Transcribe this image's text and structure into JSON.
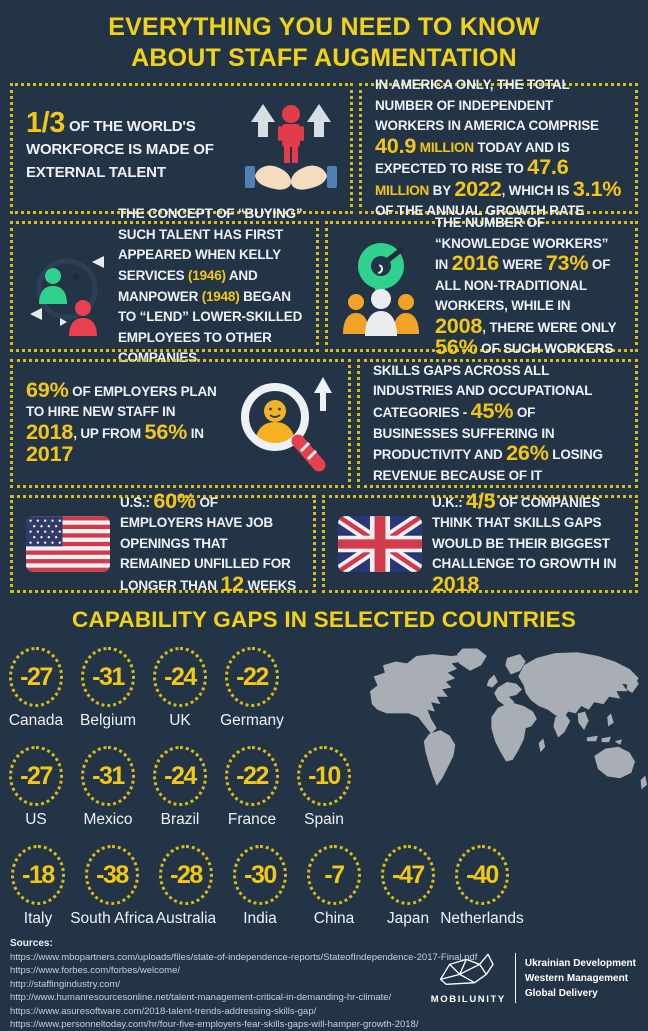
{
  "title": {
    "line1": "EVERYTHING YOU NEED TO KNOW",
    "line2": "ABOUT STAFF AUGMENTATION"
  },
  "facts": {
    "external_talent": {
      "segments": [
        {
          "t": "1/3",
          "s": "Y"
        },
        {
          "t": " OF THE WORLD'S WORKFORCE IS MADE OF EXTERNAL TALENT",
          "s": "n"
        }
      ]
    },
    "independent_workers": {
      "segments": [
        {
          "t": "IN AMERICA ONLY, THE TOTAL NUMBER OF INDEPENDENT WORKERS IN AMERICA COMPRISE ",
          "s": "n"
        },
        {
          "t": "40.9",
          "s": "Y"
        },
        {
          "t": " MILLION",
          "s": "y"
        },
        {
          "t": " TODAY AND IS EXPECTED TO RISE TO ",
          "s": "n"
        },
        {
          "t": "47.6",
          "s": "Y"
        },
        {
          "t": " MILLION",
          "s": "y"
        },
        {
          "t": " BY ",
          "s": "n"
        },
        {
          "t": "2022",
          "s": "Y"
        },
        {
          "t": ", WHICH IS ",
          "s": "n"
        },
        {
          "t": "3.1%",
          "s": "Y"
        },
        {
          "t": " OF THE ANNUAL GROWTH RATE",
          "s": "n"
        }
      ]
    },
    "buying_talent": {
      "segments": [
        {
          "t": "THE CONCEPT OF “BUYING” SUCH TALENT HAS FIRST APPEARED WHEN KELLY SERVICES ",
          "s": "n"
        },
        {
          "t": "(1946)",
          "s": "y"
        },
        {
          "t": " AND MANPOWER ",
          "s": "n"
        },
        {
          "t": "(1948)",
          "s": "y"
        },
        {
          "t": " BEGAN TO “LEND” LOWER-SKILLED EMPLOYEES TO OTHER COMPANIES",
          "s": "n"
        }
      ]
    },
    "knowledge_workers": {
      "segments": [
        {
          "t": "THE NUMBER OF “KNOWLEDGE WORKERS” IN ",
          "s": "n"
        },
        {
          "t": "2016",
          "s": "Y"
        },
        {
          "t": " WERE ",
          "s": "n"
        },
        {
          "t": "73%",
          "s": "Y"
        },
        {
          "t": " OF ALL NON-TRADITIONAL WORKERS, WHILE IN ",
          "s": "n"
        },
        {
          "t": "2008",
          "s": "Y"
        },
        {
          "t": ", THERE WERE ONLY ",
          "s": "n"
        },
        {
          "t": "56%",
          "s": "Y"
        },
        {
          "t": " OF SUCH WORKERS",
          "s": "n"
        }
      ]
    },
    "hiring_plans": {
      "segments": [
        {
          "t": "69%",
          "s": "Y"
        },
        {
          "t": " OF EMPLOYERS PLAN TO HIRE NEW STAFF IN ",
          "s": "n"
        },
        {
          "t": "2018",
          "s": "Y"
        },
        {
          "t": ", UP FROM ",
          "s": "n"
        },
        {
          "t": "56%",
          "s": "Y"
        },
        {
          "t": " IN ",
          "s": "n"
        },
        {
          "t": "2017",
          "s": "Y"
        }
      ]
    },
    "skills_gaps": {
      "segments": [
        {
          "t": "SKILLS GAPS ACROSS ALL INDUSTRIES AND OCCUPATIONAL CATEGORIES - ",
          "s": "n"
        },
        {
          "t": "45%",
          "s": "Y"
        },
        {
          "t": " OF BUSINESSES SUFFERING IN PRODUCTIVITY AND ",
          "s": "n"
        },
        {
          "t": "26%",
          "s": "Y"
        },
        {
          "t": " LOSING REVENUE BECAUSE OF IT",
          "s": "n"
        }
      ]
    },
    "us_job_openings": {
      "segments": [
        {
          "t": "U.S.: ",
          "s": "n"
        },
        {
          "t": "60%",
          "s": "Y"
        },
        {
          "t": " OF EMPLOYERS HAVE JOB OPENINGS THAT REMAINED UNFILLED FOR LONGER THAN ",
          "s": "n"
        },
        {
          "t": "12",
          "s": "Y"
        },
        {
          "t": " WEEKS",
          "s": "n"
        }
      ]
    },
    "uk_skills_challenge": {
      "segments": [
        {
          "t": "U.K.: ",
          "s": "n"
        },
        {
          "t": "4/5",
          "s": "Y"
        },
        {
          "t": " OF COMPANIES THINK THAT SKILLS GAPS WOULD BE THEIR BIGGEST CHALLENGE TO GROWTH IN ",
          "s": "n"
        },
        {
          "t": "2018",
          "s": "Y"
        }
      ]
    }
  },
  "gaps": {
    "title": "CAPABILITY GAPS IN SELECTED COUNTRIES",
    "rows": [
      [
        {
          "value": "-27",
          "country": "Canada"
        },
        {
          "value": "-31",
          "country": "Belgium"
        },
        {
          "value": "-24",
          "country": "UK"
        },
        {
          "value": "-22",
          "country": "Germany"
        }
      ],
      [
        {
          "value": "-27",
          "country": "US"
        },
        {
          "value": "-31",
          "country": "Mexico"
        },
        {
          "value": "-24",
          "country": "Brazil"
        },
        {
          "value": "-22",
          "country": "France"
        },
        {
          "value": "-10",
          "country": "Spain"
        }
      ],
      [
        {
          "value": "-18",
          "country": "Italy"
        },
        {
          "value": "-38",
          "country": "South Africa"
        },
        {
          "value": "-28",
          "country": "Australia"
        },
        {
          "value": "-30",
          "country": "India"
        },
        {
          "value": "-7",
          "country": "China"
        },
        {
          "value": "-47",
          "country": "Japan"
        },
        {
          "value": "-40",
          "country": "Netherlands"
        }
      ]
    ]
  },
  "chart_data": {
    "type": "table",
    "title": "CAPABILITY GAPS IN SELECTED COUNTRIES",
    "categories": [
      "Canada",
      "Belgium",
      "UK",
      "Germany",
      "US",
      "Mexico",
      "Brazil",
      "France",
      "Spain",
      "Italy",
      "South Africa",
      "Australia",
      "India",
      "China",
      "Japan",
      "Netherlands"
    ],
    "values": [
      -27,
      -31,
      -24,
      -22,
      -27,
      -31,
      -24,
      -22,
      -10,
      -18,
      -38,
      -28,
      -30,
      -7,
      -47,
      -40
    ]
  },
  "sources": {
    "label": "Sources:",
    "urls": [
      "https://www.mbopartners.com/uploads/files/state-of-independence-reports/StateofIndependence-2017-Final.pdf",
      "https://www.forbes.com/forbes/welcome/",
      "http://staffingindustry.com/",
      "http://www.humanresourcesonline.net/talent-management-critical-in-demanding-hr-climate/",
      "https://www.asuresoftware.com/2018-talent-trends-addressing-skills-gap/",
      "https://www.personneltoday.com/hr/four-five-employers-fear-skills-gaps-will-hamper-growth-2018/"
    ]
  },
  "footer": {
    "brand": "MOBILUNITY",
    "taglines": [
      "Ukrainian Development",
      "Western Management",
      "Global Delivery"
    ]
  },
  "icons": {
    "fact_external_talent": "hands-holding-person-icon",
    "fact_buying_talent": "people-exchange-icon",
    "fact_knowledge_workers": "knowledge-workers-icon",
    "fact_hiring_plans": "magnifier-person-icon",
    "fact_us": "us-flag-icon",
    "fact_uk": "uk-flag-icon",
    "map": "world-map",
    "logo": "mobilunity-whale-logo"
  },
  "colors": {
    "background": "#243447",
    "accent_yellow": "#F2D216",
    "highlight_gold": "#F2C716",
    "text_white": "#EDF1F5",
    "red": "#E8404E",
    "green": "#2FD18C",
    "orange": "#F2A229",
    "map_gray": "#A9AEB4"
  }
}
